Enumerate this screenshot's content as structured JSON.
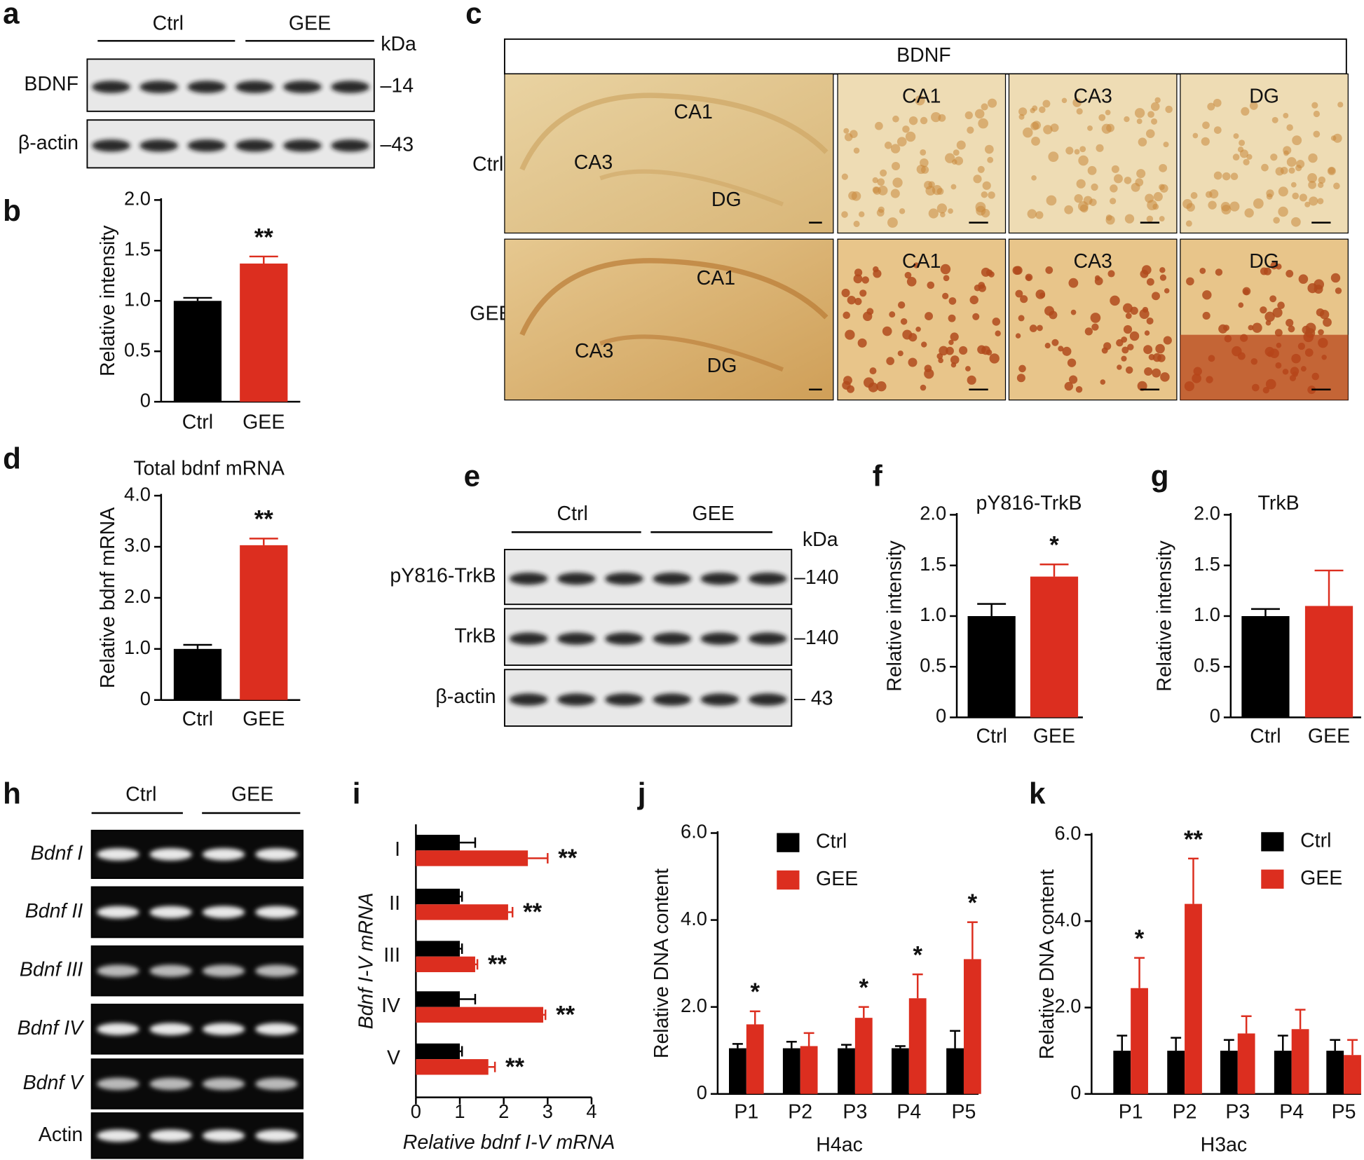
{
  "panel_a": {
    "label": "a",
    "groups": [
      "Ctrl",
      "GEE"
    ],
    "unit": "kDa",
    "rows": [
      {
        "name": "BDNF",
        "size": "–14"
      },
      {
        "name": "β-actin",
        "size": "–43"
      }
    ]
  },
  "panel_c": {
    "label": "c",
    "title": "BDNF",
    "rows": [
      "Ctrl",
      "GEE"
    ],
    "regions": [
      "CA1",
      "CA3",
      "DG"
    ]
  },
  "panel_e": {
    "label": "e",
    "groups": [
      "Ctrl",
      "GEE"
    ],
    "unit": "kDa",
    "rows": [
      {
        "name": "pY816-TrkB",
        "size": "–140"
      },
      {
        "name": "TrkB",
        "size": "–140"
      },
      {
        "name": "β-actin",
        "size": "– 43"
      }
    ]
  },
  "panel_h": {
    "label": "h",
    "groups": [
      "Ctrl",
      "GEE"
    ],
    "rows": [
      "Bdnf I",
      "Bdnf II",
      "Bdnf III",
      "Bdnf IV",
      "Bdnf V",
      "Actin"
    ]
  },
  "chart_data": [
    {
      "label": "b",
      "type": "bar",
      "categories": [
        "Ctrl",
        "GEE"
      ],
      "values": [
        1.0,
        1.37
      ],
      "errors": [
        0.03,
        0.07
      ],
      "colors": [
        "#000000",
        "#dc2e1f"
      ],
      "significance": [
        null,
        "**"
      ],
      "ylabel": "Relative intensity",
      "ylim": [
        0,
        2
      ],
      "yticks": [
        0,
        0.5,
        {
          "value": 1,
          "label": "1.0"
        },
        1.5,
        {
          "value": 2,
          "label": "2.0"
        }
      ]
    },
    {
      "label": "d",
      "type": "bar",
      "title": "Total bdnf mRNA",
      "categories": [
        "Ctrl",
        "GEE"
      ],
      "values": [
        1.0,
        3.03
      ],
      "errors": [
        0.08,
        0.13
      ],
      "colors": [
        "#000000",
        "#dc2e1f"
      ],
      "significance": [
        null,
        "**"
      ],
      "ylabel": "Relative bdnf mRNA",
      "ylim": [
        0,
        4
      ],
      "yticks": [
        0,
        {
          "value": 1,
          "label": "1.0"
        },
        {
          "value": 2,
          "label": "2.0"
        },
        {
          "value": 3,
          "label": "3.0"
        },
        {
          "value": 4,
          "label": "4.0"
        }
      ]
    },
    {
      "label": "f",
      "type": "bar",
      "title": "pY816-TrkB",
      "categories": [
        "Ctrl",
        "GEE"
      ],
      "values": [
        1.0,
        1.39
      ],
      "errors": [
        0.12,
        0.12
      ],
      "colors": [
        "#000000",
        "#dc2e1f"
      ],
      "significance": [
        null,
        "*"
      ],
      "ylabel": "Relative intensity",
      "ylim": [
        0,
        2
      ],
      "yticks": [
        0,
        0.5,
        {
          "value": 1,
          "label": "1.0"
        },
        1.5,
        {
          "value": 2,
          "label": "2.0"
        }
      ]
    },
    {
      "label": "g",
      "type": "bar",
      "title": "TrkB",
      "categories": [
        "Ctrl",
        "GEE"
      ],
      "values": [
        1.0,
        1.1
      ],
      "errors": [
        0.07,
        0.35
      ],
      "colors": [
        "#000000",
        "#dc2e1f"
      ],
      "ylabel": "Relative intensity",
      "ylim": [
        0,
        2
      ],
      "yticks": [
        0,
        0.5,
        {
          "value": 1,
          "label": "1.0"
        },
        1.5,
        {
          "value": 2,
          "label": "2.0"
        }
      ]
    },
    {
      "label": "i",
      "type": "hbar",
      "categories": [
        "I",
        "II",
        "III",
        "IV",
        "V"
      ],
      "series": [
        {
          "color": "#000000",
          "values": [
            1.0,
            1.0,
            1.0,
            1.0,
            1.0
          ],
          "errors": [
            0.35,
            0.05,
            0.05,
            0.35,
            0.05
          ]
        },
        {
          "color": "#dc2e1f",
          "values": [
            2.55,
            2.1,
            1.35,
            2.9,
            1.65
          ],
          "errors": [
            0.45,
            0.1,
            0.05,
            0.05,
            0.15
          ],
          "significance": [
            "**",
            "**",
            "**",
            "**",
            "**"
          ]
        }
      ],
      "xlabel": "Relative bdnf I-V mRNA",
      "ylabel": "Bdnf I-V mRNA",
      "xlim": [
        0,
        4
      ],
      "xticks": [
        0,
        1,
        2,
        3,
        4
      ]
    },
    {
      "label": "j",
      "type": "bar",
      "categories": [
        "P1",
        "P2",
        "P3",
        "P4",
        "P5"
      ],
      "series": [
        {
          "name": "Ctrl",
          "color": "#000000",
          "values": [
            1.05,
            1.05,
            1.05,
            1.05,
            1.05
          ],
          "errors": [
            0.1,
            0.15,
            0.08,
            0.05,
            0.4
          ]
        },
        {
          "name": "GEE",
          "color": "#dc2e1f",
          "values": [
            1.6,
            1.1,
            1.75,
            2.2,
            3.1
          ],
          "errors": [
            0.3,
            0.3,
            0.25,
            0.55,
            0.85
          ],
          "significance": [
            "*",
            null,
            "*",
            "*",
            "*"
          ]
        }
      ],
      "xlabel": "H4ac",
      "ylabel": "Relative DNA content",
      "ylim": [
        0,
        6
      ],
      "yticks": [
        0,
        {
          "value": 2,
          "label": "2.0"
        },
        {
          "value": 4,
          "label": "4.0"
        },
        {
          "value": 6,
          "label": "6.0"
        }
      ]
    },
    {
      "label": "k",
      "type": "bar",
      "categories": [
        "P1",
        "P2",
        "P3",
        "P4",
        "P5"
      ],
      "series": [
        {
          "name": "Ctrl",
          "color": "#000000",
          "values": [
            1.0,
            1.0,
            1.0,
            1.0,
            1.0
          ],
          "errors": [
            0.35,
            0.3,
            0.25,
            0.35,
            0.25
          ]
        },
        {
          "name": "GEE",
          "color": "#dc2e1f",
          "values": [
            2.45,
            4.4,
            1.4,
            1.5,
            0.9
          ],
          "errors": [
            0.7,
            1.05,
            0.4,
            0.45,
            0.35
          ],
          "significance": [
            "*",
            "**",
            null,
            null,
            null
          ]
        }
      ],
      "xlabel": "H3ac",
      "ylabel": "Relative DNA content",
      "ylim": [
        0,
        6
      ],
      "yticks": [
        0,
        {
          "value": 2,
          "label": "2.0"
        },
        {
          "value": 4,
          "label": "4.0"
        },
        {
          "value": 6,
          "label": "6.0"
        }
      ]
    }
  ]
}
